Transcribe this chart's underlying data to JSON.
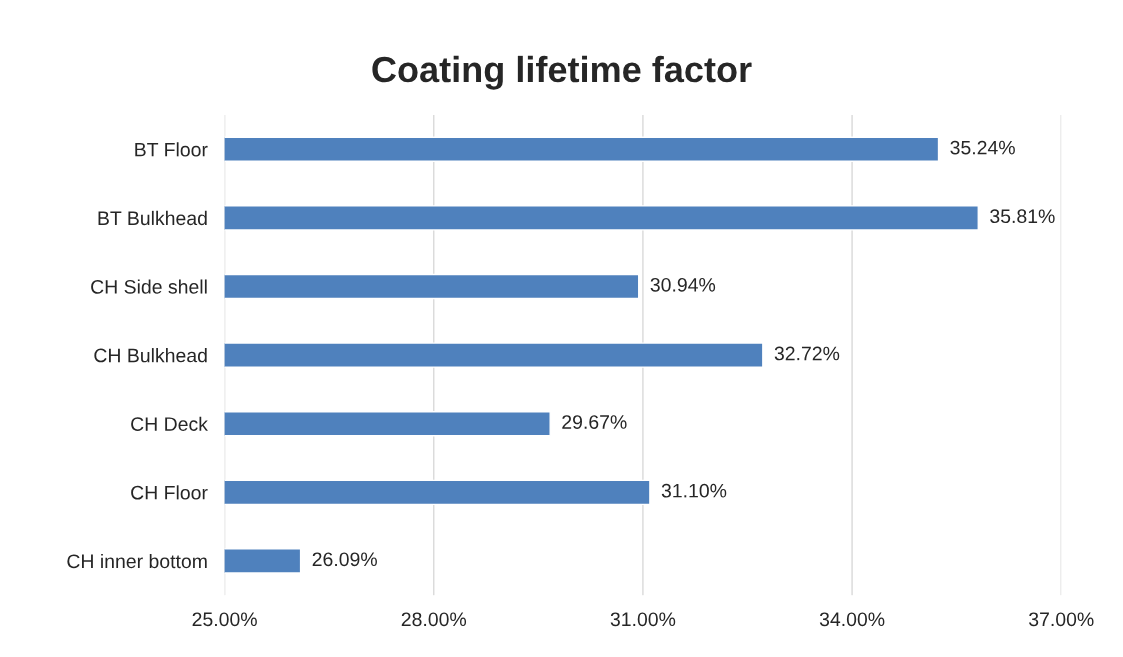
{
  "chart_data": {
    "type": "bar",
    "orientation": "horizontal",
    "title": "Coating lifetime factor",
    "categories": [
      "BT Floor",
      "BT Bulkhead",
      "CH Side shell",
      "CH Bulkhead",
      "CH Deck",
      "CH Floor",
      "CH inner bottom"
    ],
    "values": [
      35.24,
      35.81,
      30.94,
      32.72,
      29.67,
      31.1,
      26.09
    ],
    "value_labels": [
      "35.24%",
      "35.81%",
      "30.94%",
      "32.72%",
      "29.67%",
      "31.10%",
      "26.09%"
    ],
    "color": "#4f81bd",
    "xlim": [
      25,
      37
    ],
    "xticks": [
      {
        "value": 25,
        "label": "25.00%"
      },
      {
        "value": 28,
        "label": "28.00%"
      },
      {
        "value": 31,
        "label": "31.00%"
      },
      {
        "value": 34,
        "label": "34.00%"
      },
      {
        "value": 37,
        "label": "37.00%"
      }
    ],
    "grid": "x",
    "legend": false
  }
}
